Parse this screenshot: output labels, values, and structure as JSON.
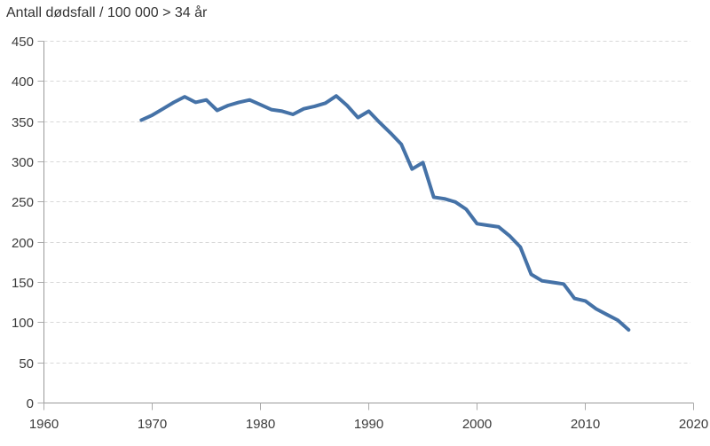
{
  "title": "Antall dødsfall / 100 000 > 34 år",
  "colors": {
    "background": "#ffffff",
    "line": "#4572a7",
    "grid": "#d8d8d8",
    "axis": "#999999",
    "tick": "#ababab",
    "text": "#3b3b3b",
    "title_text": "#333333"
  },
  "chart_data": {
    "type": "line",
    "title": "Antall dødsfall / 100 000 > 34 år",
    "xlabel": "",
    "ylabel": "",
    "xlim": [
      1960,
      2020
    ],
    "ylim": [
      0,
      450
    ],
    "x_ticks": [
      1960,
      1970,
      1980,
      1990,
      2000,
      2010,
      2020
    ],
    "y_ticks": [
      0,
      50,
      100,
      150,
      200,
      250,
      300,
      350,
      400,
      450
    ],
    "grid": "horizontal dashed gridlines, none at 0 (solid baseline axis)",
    "legend": "none",
    "series": [
      {
        "name": "Antall dødsfall / 100 000 > 34 år",
        "color": "#4572a7",
        "x": [
          1969,
          1970,
          1971,
          1972,
          1973,
          1974,
          1975,
          1976,
          1977,
          1978,
          1979,
          1980,
          1981,
          1982,
          1983,
          1984,
          1985,
          1986,
          1987,
          1988,
          1989,
          1990,
          1991,
          1992,
          1993,
          1994,
          1995,
          1996,
          1997,
          1998,
          1999,
          2000,
          2001,
          2002,
          2003,
          2004,
          2005,
          2006,
          2007,
          2008,
          2009,
          2010,
          2011,
          2012,
          2013,
          2014
        ],
        "values": [
          352,
          358,
          366,
          374,
          381,
          374,
          377,
          364,
          370,
          374,
          377,
          371,
          365,
          363,
          359,
          366,
          369,
          373,
          382,
          370,
          355,
          363,
          349,
          336,
          322,
          291,
          299,
          256,
          254,
          250,
          241,
          223,
          221,
          219,
          208,
          194,
          160,
          152,
          150,
          148,
          130,
          127,
          117,
          110,
          103,
          91
        ]
      }
    ]
  }
}
